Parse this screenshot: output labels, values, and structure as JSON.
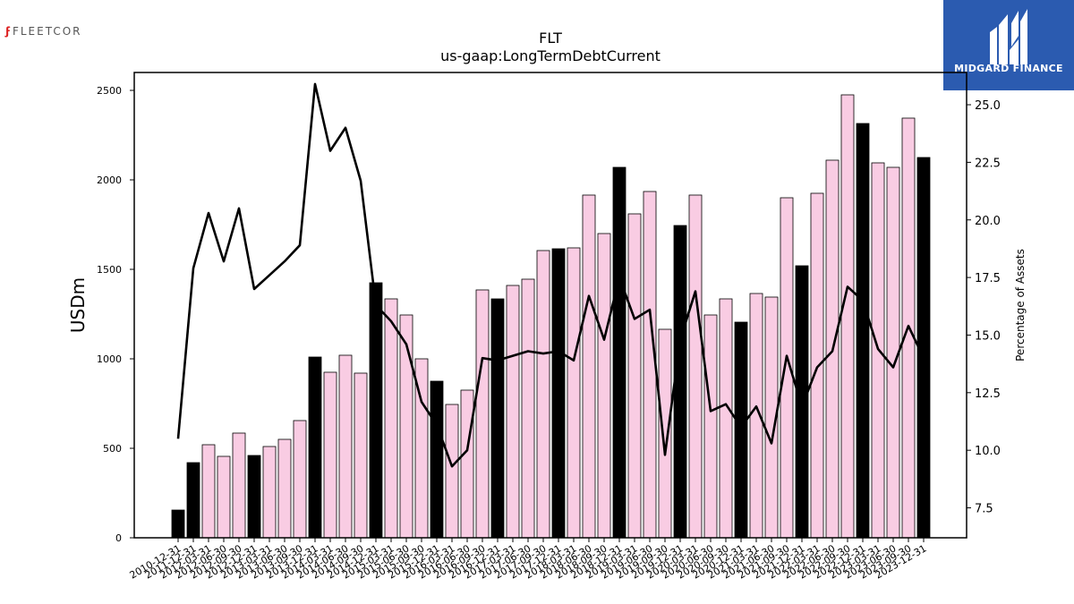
{
  "branding": {
    "left_logo_text": "FLEETCOR",
    "left_logo_mark": "ϝ",
    "right_logo_text": "MIDGARD FINANCE",
    "right_logo_icon": "midgard-m-icon",
    "right_logo_bg": "#2b5bb0"
  },
  "chart_data": {
    "type": "bar",
    "title": "FLT",
    "subtitle": "us-gaap:LongTermDebtCurrent",
    "ylabel": "USDm",
    "y2label": "Percentage of Assets",
    "ylim": [
      0,
      2600
    ],
    "y2lim": [
      6.2,
      26.4
    ],
    "yticks": [
      "0",
      "500",
      "1000",
      "1500",
      "2000",
      "2500"
    ],
    "y2ticks": [
      "7.5",
      "10.0",
      "12.5",
      "15.0",
      "17.5",
      "20.0",
      "22.5",
      "25.0"
    ],
    "colors": {
      "annual": "#000000",
      "quarter": "#f9cce3",
      "edge": "#000000",
      "line": "#000000"
    },
    "categories": [
      "2010-12-31",
      "2011-12-31",
      "2012-03-31",
      "2012-06-30",
      "2012-09-30",
      "2012-12-31",
      "2013-03-31",
      "2013-06-30",
      "2013-09-30",
      "2013-12-31",
      "2014-03-31",
      "2014-06-30",
      "2014-09-30",
      "2014-12-31",
      "2015-03-31",
      "2015-06-30",
      "2015-09-30",
      "2015-12-31",
      "2016-03-31",
      "2016-06-30",
      "2016-09-30",
      "2016-12-31",
      "2017-03-31",
      "2017-06-30",
      "2017-09-30",
      "2017-12-31",
      "2018-03-31",
      "2018-06-30",
      "2018-09-30",
      "2018-12-31",
      "2019-03-31",
      "2019-06-30",
      "2019-09-30",
      "2019-12-31",
      "2020-03-31",
      "2020-06-30",
      "2020-09-30",
      "2020-12-31",
      "2021-03-31",
      "2021-06-30",
      "2021-09-30",
      "2021-12-31",
      "2022-03-31",
      "2022-06-30",
      "2022-09-30",
      "2022-12-31",
      "2023-03-31",
      "2023-06-30",
      "2023-09-30",
      "2023-12-31"
    ],
    "series": [
      {
        "kind": "bar",
        "values": [
          155,
          420,
          520,
          455,
          585,
          460,
          510,
          550,
          655,
          1010,
          925,
          1020,
          920,
          1425,
          1335,
          1245,
          1000,
          875,
          745,
          825,
          1385,
          1335,
          1410,
          1445,
          1605,
          1615,
          1620,
          1915,
          1700,
          2070,
          1810,
          1935,
          1165,
          1745,
          1915,
          1245,
          1335,
          1205,
          1365,
          1345,
          1900,
          1520,
          1925,
          2110,
          2475,
          2315,
          2095,
          2070,
          2345,
          2125
        ],
        "annual": [
          true,
          true,
          false,
          false,
          false,
          true,
          false,
          false,
          false,
          true,
          false,
          false,
          false,
          true,
          false,
          false,
          false,
          true,
          false,
          false,
          false,
          true,
          false,
          false,
          false,
          true,
          false,
          false,
          false,
          true,
          false,
          false,
          false,
          true,
          false,
          false,
          false,
          true,
          false,
          false,
          false,
          true,
          false,
          false,
          false,
          true,
          false,
          false,
          false,
          true
        ]
      },
      {
        "kind": "line",
        "axis": "right",
        "values": [
          10.5,
          17.9,
          20.3,
          18.2,
          20.5,
          17.0,
          17.6,
          18.2,
          18.9,
          25.9,
          23.0,
          24.0,
          21.7,
          16.3,
          15.6,
          14.6,
          12.1,
          11.1,
          9.3,
          10.0,
          14.0,
          13.9,
          14.1,
          14.3,
          14.2,
          14.3,
          13.9,
          16.7,
          14.8,
          17.5,
          15.7,
          16.1,
          9.8,
          14.8,
          16.9,
          11.7,
          12.0,
          11.0,
          11.9,
          10.3,
          14.1,
          11.9,
          13.6,
          14.3,
          17.1,
          16.5,
          14.4,
          13.6,
          15.4,
          14.0
        ]
      }
    ]
  }
}
